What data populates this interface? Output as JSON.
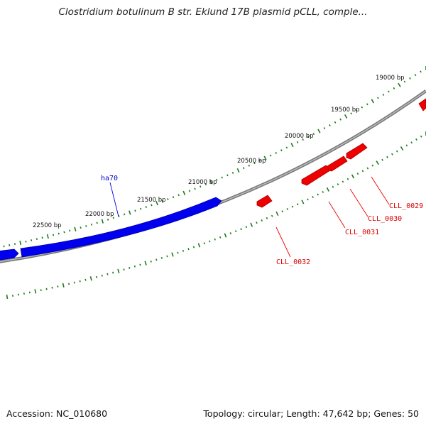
{
  "title": "Clostridium botulinum B str. Eklund 17B plasmid pCLL, comple...",
  "footer": {
    "accession": "Accession: NC_010680",
    "summary": "Topology: circular; Length: 47,642 bp; Genes: 50"
  },
  "colors": {
    "forward_gene": "#0000ee",
    "reverse_gene": "#ee0000",
    "backbone": "#808080",
    "ticks": "#1a7a1a"
  },
  "bp_labels": [
    "19000 bp",
    "19500 bp",
    "20000 bp",
    "20500 bp",
    "21000 bp",
    "21500 bp",
    "22000 bp",
    "22500 bp"
  ],
  "genes": {
    "ha70": "ha70",
    "cll_0029": "CLL_0029",
    "cll_0030": "CLL_0030",
    "cll_0031": "CLL_0031",
    "cll_0032": "CLL_0032"
  }
}
